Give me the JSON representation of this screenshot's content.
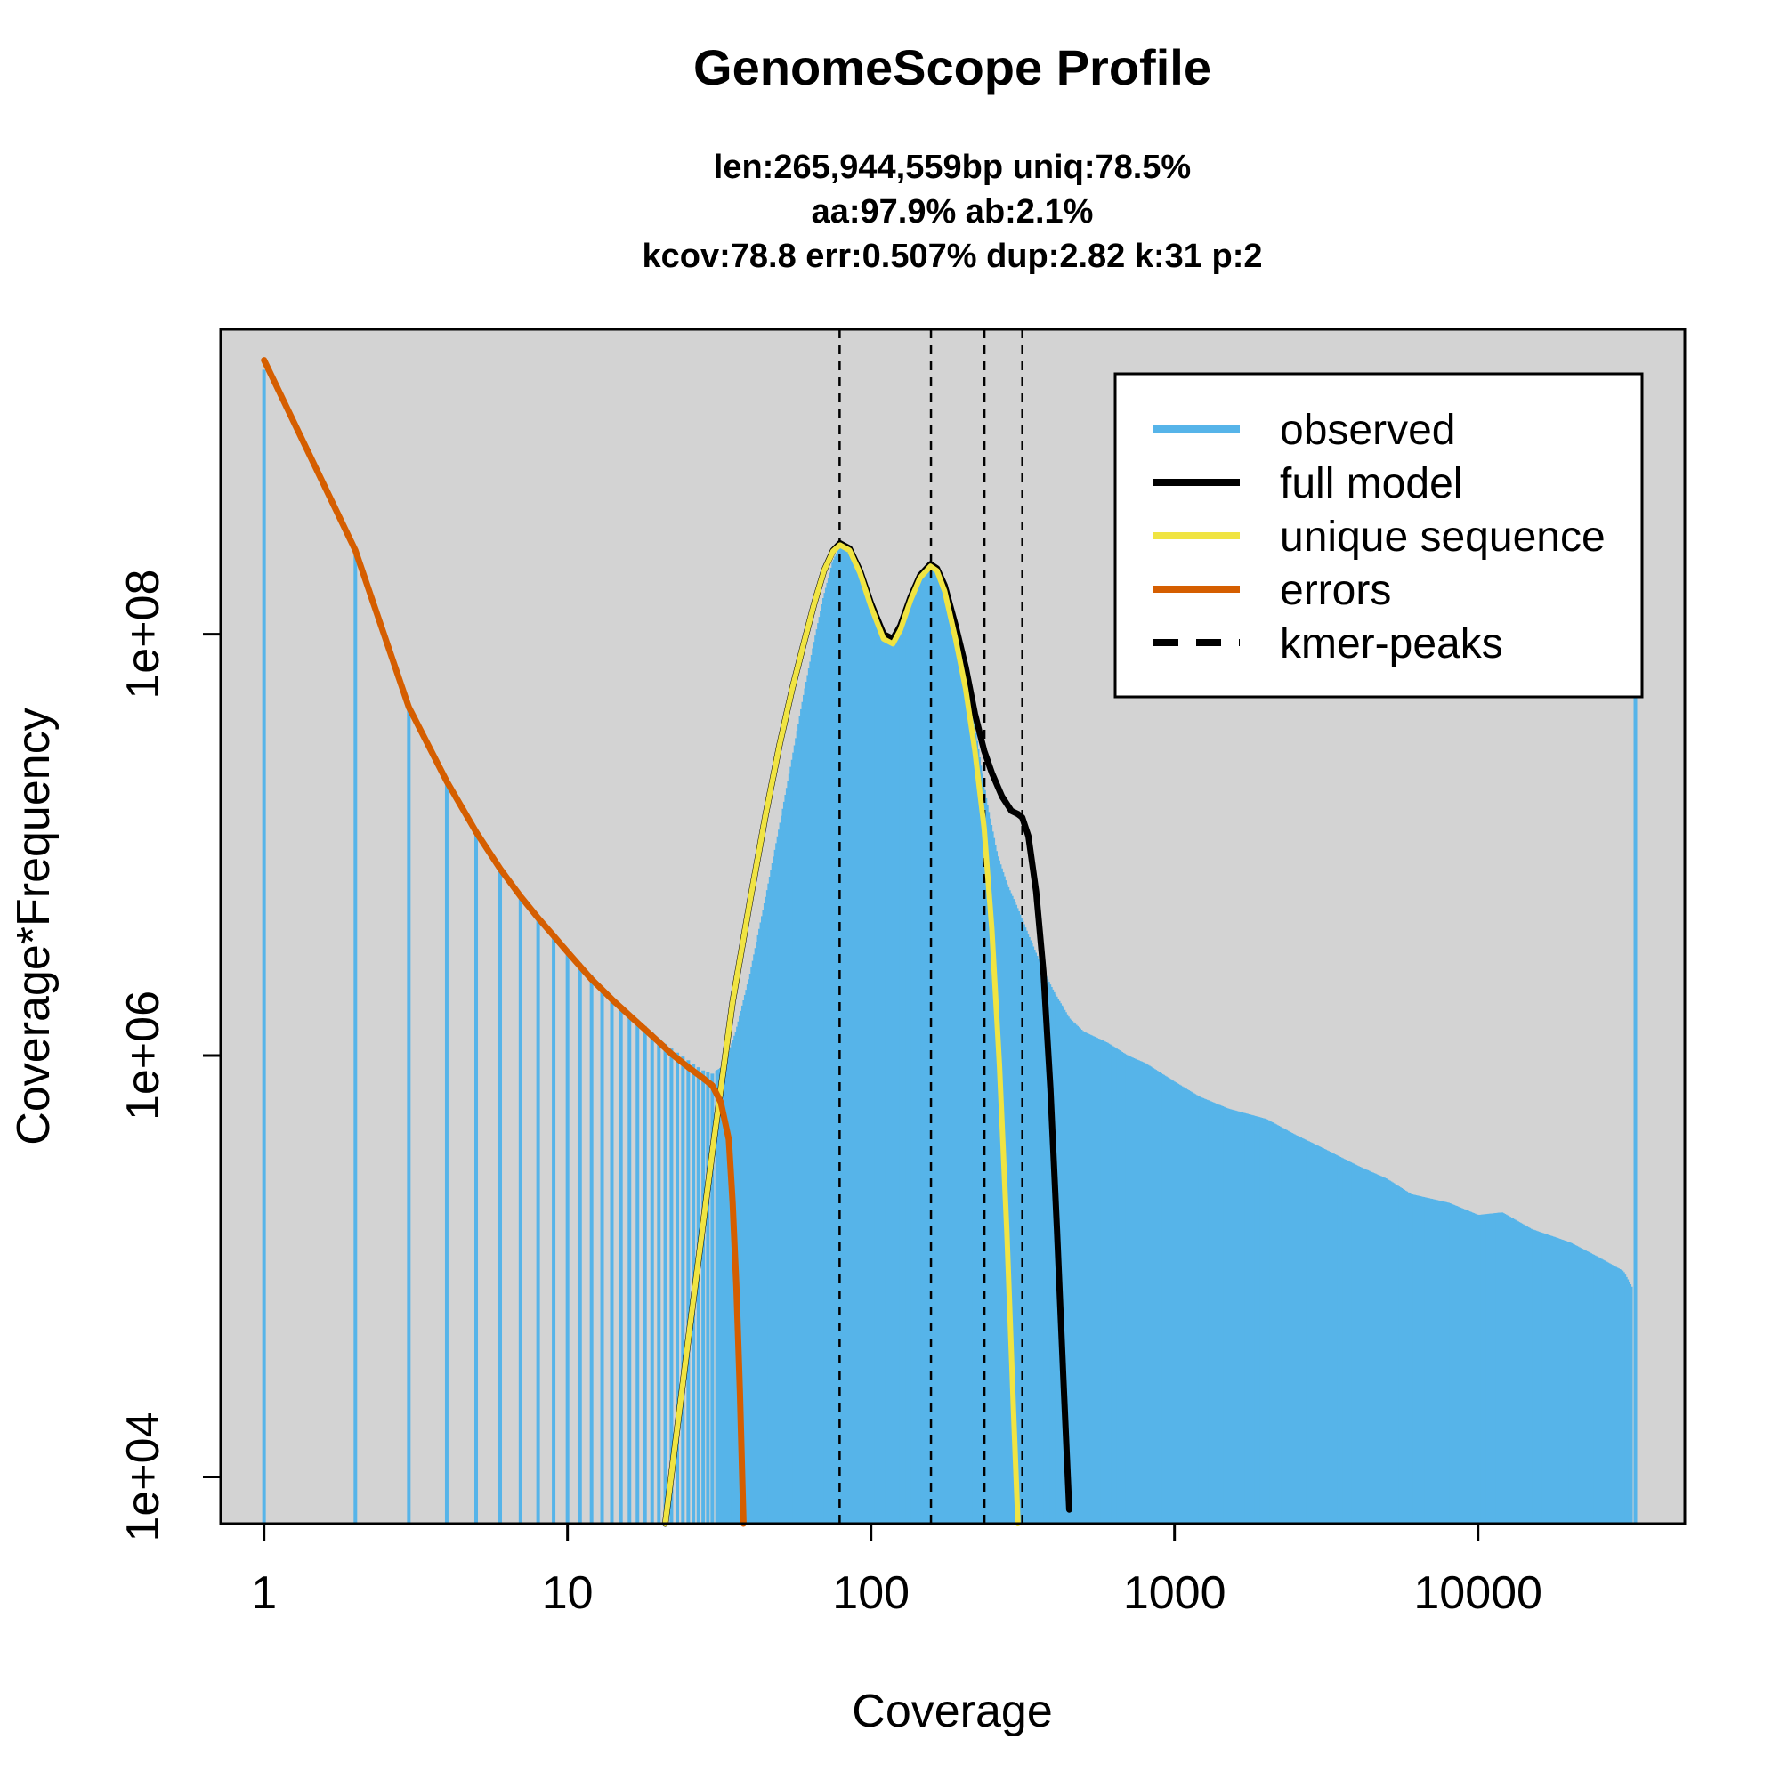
{
  "chart_data": {
    "type": "line",
    "title": "GenomeScope Profile",
    "subtitle_lines": [
      "len:265,944,559bp uniq:78.5%",
      "aa:97.9% ab:2.1%",
      "kcov:78.8 err:0.507%  dup:2.82  k:31 p:2"
    ],
    "xlabel": "Coverage",
    "ylabel": "Coverage*Frequency",
    "x_scale": "log",
    "y_scale": "log",
    "xlim": [
      0.72,
      48000
    ],
    "ylim": [
      6000,
      2800000000
    ],
    "x_ticks": [
      {
        "value": 1,
        "label": "1"
      },
      {
        "value": 10,
        "label": "10"
      },
      {
        "value": 100,
        "label": "100"
      },
      {
        "value": 1000,
        "label": "1000"
      },
      {
        "value": 10000,
        "label": "10000"
      }
    ],
    "y_ticks": [
      {
        "value": 10000,
        "label": "1e+04"
      },
      {
        "value": 1000000,
        "label": "1e+06"
      },
      {
        "value": 100000000,
        "label": "1e+08"
      }
    ],
    "background": "#d3d3d3",
    "grid": false,
    "legend_position": "top-right",
    "kmer_peaks": [
      78.8,
      157.6,
      236.4,
      315.2
    ],
    "series": [
      {
        "name": "observed",
        "style": "histogram",
        "color": "#56b4e9",
        "points": [
          [
            1,
            1800000000
          ],
          [
            2,
            250000000
          ],
          [
            3,
            47000000
          ],
          [
            4,
            20000000
          ],
          [
            5,
            11500000
          ],
          [
            6,
            7800000
          ],
          [
            7,
            5800000
          ],
          [
            8,
            4600000
          ],
          [
            9,
            3800000
          ],
          [
            10,
            3200000
          ],
          [
            12,
            2400000
          ],
          [
            14,
            1900000
          ],
          [
            16,
            1600000
          ],
          [
            18,
            1380000
          ],
          [
            20,
            1200000
          ],
          [
            22,
            1080000
          ],
          [
            25,
            950000
          ],
          [
            28,
            850000
          ],
          [
            30,
            820000
          ],
          [
            33,
            900000
          ],
          [
            36,
            1300000
          ],
          [
            40,
            2400000
          ],
          [
            45,
            5500000
          ],
          [
            50,
            12000000
          ],
          [
            55,
            25000000
          ],
          [
            60,
            50000000
          ],
          [
            65,
            90000000
          ],
          [
            70,
            150000000
          ],
          [
            75,
            220000000
          ],
          [
            79,
            260000000
          ],
          [
            85,
            250000000
          ],
          [
            90,
            210000000
          ],
          [
            100,
            140000000
          ],
          [
            110,
            100000000
          ],
          [
            118,
            95000000
          ],
          [
            125,
            105000000
          ],
          [
            135,
            140000000
          ],
          [
            145,
            180000000
          ],
          [
            157,
            210000000
          ],
          [
            165,
            200000000
          ],
          [
            180,
            150000000
          ],
          [
            200,
            80000000
          ],
          [
            220,
            35000000
          ],
          [
            240,
            16000000
          ],
          [
            260,
            9000000
          ],
          [
            280,
            6500000
          ],
          [
            300,
            5200000
          ],
          [
            330,
            3700000
          ],
          [
            370,
            2500000
          ],
          [
            400,
            2000000
          ],
          [
            450,
            1500000
          ],
          [
            500,
            1300000
          ],
          [
            600,
            1150000
          ],
          [
            700,
            1000000
          ],
          [
            800,
            920000
          ],
          [
            1000,
            750000
          ],
          [
            1200,
            640000
          ],
          [
            1500,
            560000
          ],
          [
            2000,
            500000
          ],
          [
            2500,
            420000
          ],
          [
            3000,
            370000
          ],
          [
            4000,
            300000
          ],
          [
            5000,
            260000
          ],
          [
            6000,
            220000
          ],
          [
            8000,
            200000
          ],
          [
            10000,
            175000
          ],
          [
            12000,
            180000
          ],
          [
            15000,
            150000
          ],
          [
            20000,
            130000
          ],
          [
            25000,
            110000
          ],
          [
            30000,
            95000
          ],
          [
            32000,
            80000
          ],
          [
            33000,
            90000000
          ]
        ]
      },
      {
        "name": "full model",
        "style": "line",
        "color": "#000000",
        "points": [
          [
            21,
            5000
          ],
          [
            25,
            45000
          ],
          [
            30,
            350000
          ],
          [
            35,
            1800000
          ],
          [
            40,
            5500000
          ],
          [
            45,
            14000000
          ],
          [
            50,
            30000000
          ],
          [
            55,
            55000000
          ],
          [
            60,
            90000000
          ],
          [
            65,
            140000000
          ],
          [
            70,
            200000000
          ],
          [
            75,
            250000000
          ],
          [
            79,
            270000000
          ],
          [
            85,
            255000000
          ],
          [
            92,
            200000000
          ],
          [
            100,
            140000000
          ],
          [
            110,
            100000000
          ],
          [
            118,
            95000000
          ],
          [
            125,
            110000000
          ],
          [
            135,
            150000000
          ],
          [
            145,
            190000000
          ],
          [
            157,
            215000000
          ],
          [
            165,
            205000000
          ],
          [
            175,
            170000000
          ],
          [
            190,
            110000000
          ],
          [
            205,
            70000000
          ],
          [
            220,
            42000000
          ],
          [
            236,
            28000000
          ],
          [
            250,
            22000000
          ],
          [
            270,
            17000000
          ],
          [
            290,
            14500000
          ],
          [
            305,
            14000000
          ],
          [
            315,
            13500000
          ],
          [
            330,
            11000000
          ],
          [
            350,
            6000000
          ],
          [
            370,
            2500000
          ],
          [
            390,
            700000
          ],
          [
            410,
            150000
          ],
          [
            430,
            30000
          ],
          [
            450,
            7000
          ]
        ]
      },
      {
        "name": "unique sequence",
        "style": "line",
        "color": "#f0e442",
        "points": [
          [
            21,
            5000
          ],
          [
            25,
            45000
          ],
          [
            30,
            350000
          ],
          [
            35,
            1800000
          ],
          [
            40,
            5500000
          ],
          [
            45,
            14000000
          ],
          [
            50,
            30000000
          ],
          [
            55,
            55000000
          ],
          [
            60,
            90000000
          ],
          [
            65,
            140000000
          ],
          [
            70,
            200000000
          ],
          [
            75,
            248000000
          ],
          [
            79,
            265000000
          ],
          [
            85,
            250000000
          ],
          [
            92,
            195000000
          ],
          [
            100,
            135000000
          ],
          [
            110,
            95000000
          ],
          [
            118,
            90000000
          ],
          [
            125,
            105000000
          ],
          [
            135,
            145000000
          ],
          [
            145,
            185000000
          ],
          [
            157,
            210000000
          ],
          [
            165,
            200000000
          ],
          [
            175,
            160000000
          ],
          [
            190,
            95000000
          ],
          [
            205,
            55000000
          ],
          [
            220,
            28000000
          ],
          [
            236,
            12000000
          ],
          [
            250,
            4000000
          ],
          [
            265,
            900000
          ],
          [
            280,
            150000
          ],
          [
            295,
            20000
          ],
          [
            305,
            6000
          ]
        ]
      },
      {
        "name": "errors",
        "style": "line",
        "color": "#d55e00",
        "points": [
          [
            1,
            2000000000
          ],
          [
            2,
            250000000
          ],
          [
            3,
            45000000
          ],
          [
            4,
            20000000
          ],
          [
            5,
            11500000
          ],
          [
            6,
            7700000
          ],
          [
            7,
            5700000
          ],
          [
            8,
            4500000
          ],
          [
            9,
            3700000
          ],
          [
            10,
            3100000
          ],
          [
            12,
            2300000
          ],
          [
            14,
            1850000
          ],
          [
            16,
            1550000
          ],
          [
            18,
            1330000
          ],
          [
            20,
            1160000
          ],
          [
            22,
            1020000
          ],
          [
            25,
            880000
          ],
          [
            28,
            780000
          ],
          [
            30,
            720000
          ],
          [
            32,
            600000
          ],
          [
            34,
            400000
          ],
          [
            35,
            200000
          ],
          [
            36,
            80000
          ],
          [
            37,
            25000
          ],
          [
            38,
            6000
          ]
        ]
      },
      {
        "name": "kmer-peaks",
        "style": "dashed",
        "color": "#000000",
        "points": []
      }
    ]
  }
}
